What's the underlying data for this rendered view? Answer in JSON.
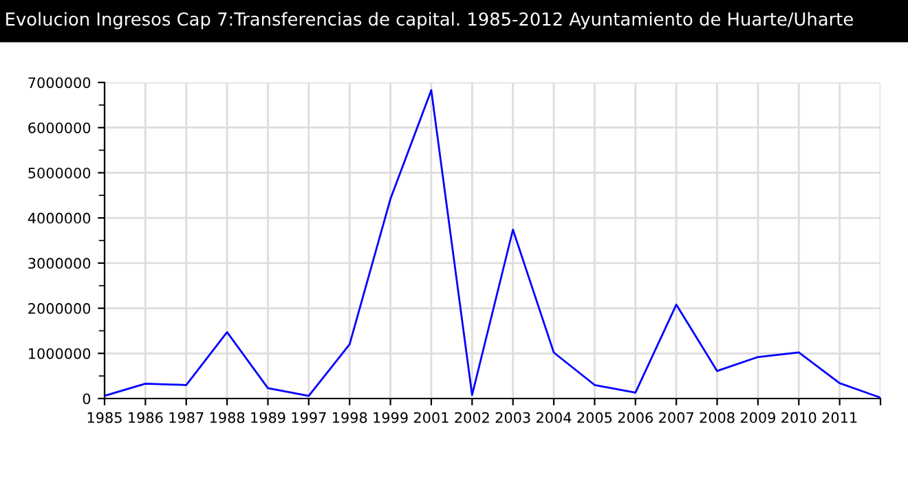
{
  "chart_data": {
    "type": "line",
    "title": "Evolucion Ingresos Cap 7:Transferencias de capital. 1985-2012 Ayuntamiento de Huarte/Uharte",
    "categories": [
      "1985",
      "1986",
      "1987",
      "1988",
      "1989",
      "1997",
      "1998",
      "1999",
      "2001",
      "2002",
      "2003",
      "2004",
      "2005",
      "2006",
      "2007",
      "2008",
      "2009",
      "2010",
      "2011",
      null
    ],
    "series": [
      {
        "color": "#0000ff",
        "values": [
          60000,
          330000,
          300000,
          1470000,
          230000,
          60000,
          1200000,
          4420000,
          6830000,
          80000,
          3740000,
          1020000,
          300000,
          130000,
          2080000,
          610000,
          920000,
          1020000,
          340000,
          20000
        ]
      }
    ],
    "ylim": [
      0,
      7000000
    ],
    "yticks": [
      0,
      1000000,
      2000000,
      3000000,
      4000000,
      5000000,
      6000000,
      7000000
    ],
    "grid": true,
    "legend": false,
    "marker": "none",
    "line_style": "solid"
  }
}
